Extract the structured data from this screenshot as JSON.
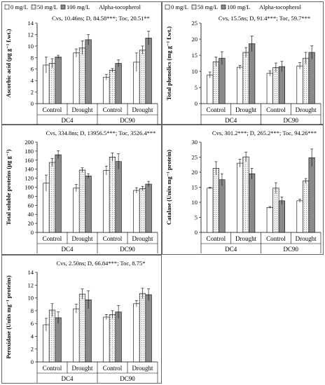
{
  "colors": {
    "zero": "#ffffff",
    "fifty": "#f1f1f1",
    "hundred": "#8a8a8a",
    "axis": "#000000",
    "frame": "#666666"
  },
  "legend": [
    "0 mg/L",
    "50 mg/L",
    "100 mg/L",
    "Alpha-tocopherol"
  ],
  "chart_data": [
    {
      "type": "bar",
      "panel": "ascorbic",
      "ylabel": "Ascorbic acid (µg g⁻¹ f.wt.)",
      "stats": "Cvs, 10.46ns; D, 84.58***; Toc, 20.51**",
      "ylim": [
        0,
        14
      ],
      "yticks": [
        0,
        2,
        4,
        6,
        8,
        10,
        12,
        14
      ],
      "categories": [
        "Control",
        "Drought",
        "Control",
        "Drought"
      ],
      "cultivars": [
        "DC4",
        "DC90"
      ],
      "series": [
        {
          "name": "0 mg/L",
          "values": [
            6.7,
            8.8,
            4.6,
            7.2
          ],
          "errors": [
            1.4,
            0.7,
            0.5,
            1.6
          ]
        },
        {
          "name": "50 mg/L",
          "values": [
            7.0,
            9.7,
            5.8,
            9.3
          ],
          "errors": [
            0.8,
            1.2,
            0.3,
            0.7
          ]
        },
        {
          "name": "100 mg/L",
          "values": [
            8.1,
            11.1,
            7.0,
            11.4
          ],
          "errors": [
            0.3,
            0.9,
            0.6,
            1.2
          ]
        }
      ]
    },
    {
      "type": "bar",
      "panel": "phenolics",
      "ylabel": "Total phenolics (mg g⁻¹ f.wt.)",
      "stats": "Cvs, 15.5ns; D, 91.4***; Toc, 59.7***",
      "ylim": [
        0,
        25
      ],
      "yticks": [
        0,
        5,
        10,
        15,
        20,
        25
      ],
      "categories": [
        "Control",
        "Drought",
        "Control",
        "Drought"
      ],
      "cultivars": [
        "DC4",
        "DC90"
      ],
      "series": [
        {
          "name": "0 mg/L",
          "values": [
            8.9,
            11.3,
            9.4,
            11.7
          ],
          "errors": [
            0.9,
            0.6,
            0.8,
            1.0
          ]
        },
        {
          "name": "50 mg/L",
          "values": [
            13.0,
            15.9,
            11.2,
            14.1
          ],
          "errors": [
            1.5,
            1.5,
            1.4,
            1.8
          ]
        },
        {
          "name": "100 mg/L",
          "values": [
            14.1,
            18.6,
            11.5,
            15.9
          ],
          "errors": [
            2.0,
            2.4,
            1.6,
            2.1
          ]
        }
      ]
    },
    {
      "type": "bar",
      "panel": "proteins",
      "ylabel": "Total soluble proteins (µg g⁻¹)",
      "stats": "Cvs, 334.8ns; D, 13956.5***; Toc, 3526.4***",
      "ylim": [
        0,
        200
      ],
      "yticks": [
        0,
        20,
        40,
        60,
        80,
        100,
        120,
        140,
        160,
        180,
        200
      ],
      "categories": [
        "Control",
        "Drought",
        "Control",
        "Drought"
      ],
      "cultivars": [
        "DC4",
        "DC90"
      ],
      "series": [
        {
          "name": "0 mg/L",
          "values": [
            109,
            98,
            137,
            93
          ],
          "errors": [
            18,
            8,
            10,
            6
          ]
        },
        {
          "name": "50 mg/L",
          "values": [
            155,
            138,
            167,
            97
          ],
          "errors": [
            9,
            5,
            9,
            5
          ]
        },
        {
          "name": "100 mg/L",
          "values": [
            172,
            125,
            157,
            107
          ],
          "errors": [
            9,
            5,
            17,
            6
          ]
        }
      ]
    },
    {
      "type": "bar",
      "panel": "catalase",
      "ylabel": "Catalase (Units mg⁻¹ protein)",
      "stats": "Cvs, 301.2***; D, 265.2***; Toc, 94.26***",
      "ylim": [
        0,
        30
      ],
      "yticks": [
        0,
        5,
        10,
        15,
        20,
        25,
        30
      ],
      "categories": [
        "Control",
        "Drought",
        "Control",
        "Drought"
      ],
      "cultivars": [
        "DC4",
        "DC90"
      ],
      "series": [
        {
          "name": "0 mg/L",
          "values": [
            14.7,
            23.0,
            8.3,
            10.5
          ],
          "errors": [
            0.3,
            1.3,
            0.3,
            0.5
          ]
        },
        {
          "name": "50 mg/L",
          "values": [
            21.3,
            25.1,
            14.7,
            17.1
          ],
          "errors": [
            2.2,
            1.6,
            1.8,
            0.8
          ]
        },
        {
          "name": "100 mg/L",
          "values": [
            17.5,
            19.5,
            10.5,
            24.8
          ],
          "errors": [
            2.0,
            1.8,
            1.3,
            2.9
          ]
        }
      ]
    },
    {
      "type": "bar",
      "panel": "peroxidase",
      "ylabel": "Peroxidase (Units mg⁻¹ proteins)",
      "stats": "Cvs, 2.50ns; D, 66.84***; Toc, 8.75*",
      "ylim": [
        0,
        14
      ],
      "yticks": [
        0,
        2,
        4,
        6,
        8,
        10,
        12,
        14
      ],
      "categories": [
        "Control",
        "Drought",
        "Control",
        "Drought"
      ],
      "cultivars": [
        "DC4",
        "DC90"
      ],
      "series": [
        {
          "name": "0 mg/L",
          "values": [
            5.8,
            8.3,
            7.0,
            9.1
          ],
          "errors": [
            1.0,
            0.7,
            0.4,
            0.5
          ]
        },
        {
          "name": "50 mg/L",
          "values": [
            8.1,
            10.6,
            7.4,
            10.7
          ],
          "errors": [
            1.0,
            0.8,
            0.6,
            0.8
          ]
        },
        {
          "name": "100 mg/L",
          "values": [
            6.9,
            9.7,
            7.8,
            10.5
          ],
          "errors": [
            0.9,
            1.4,
            1.0,
            0.9
          ]
        }
      ]
    }
  ]
}
